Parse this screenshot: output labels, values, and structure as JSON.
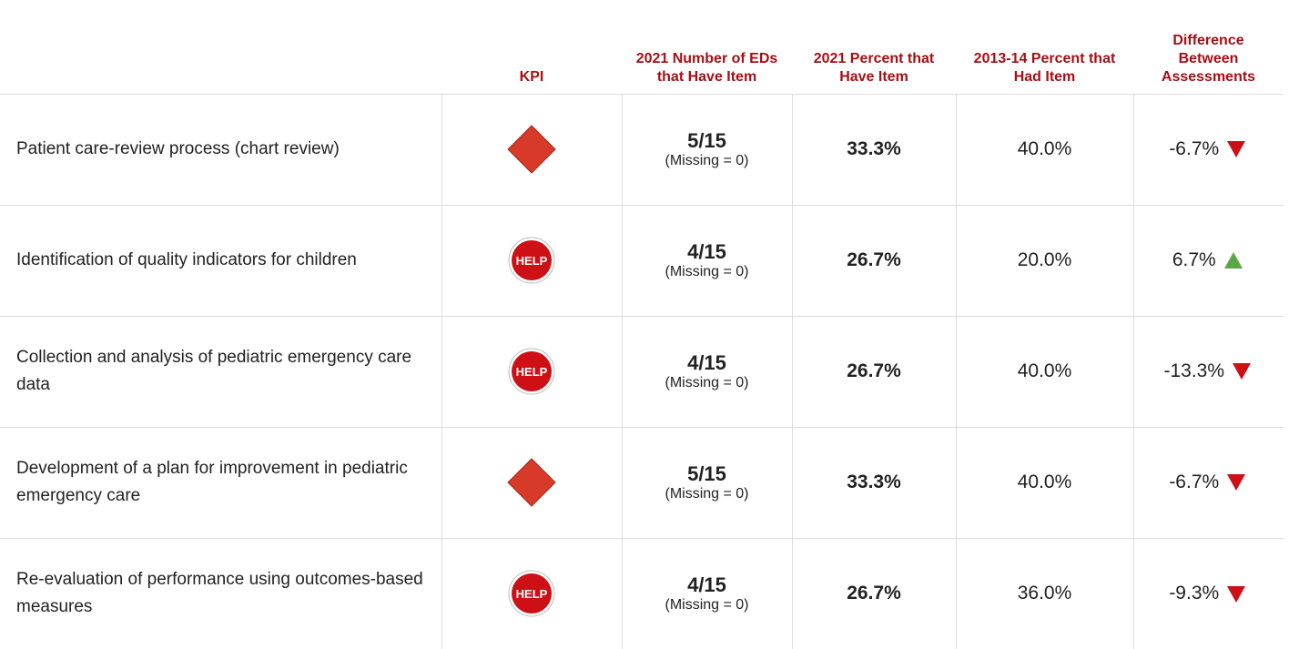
{
  "table": {
    "headers": [
      "KPI",
      "2021 Number of EDs that Have Item",
      "2021 Percent that Have Item",
      "2013-14 Percent that Had Item",
      "Difference Between Assessments"
    ],
    "rows": [
      {
        "item": "Patient care-review process (chart review)",
        "kpi": {
          "shape": "diamond"
        },
        "count": "5/15",
        "missing": "(Missing = 0)",
        "pct_2021": "33.3%",
        "pct_2013": "40.0%",
        "diff": "-6.7%",
        "trend": "down"
      },
      {
        "item": "Identification of quality indicators for children",
        "kpi": {
          "shape": "stop",
          "label": "HELP"
        },
        "count": "4/15",
        "missing": "(Missing = 0)",
        "pct_2021": "26.7%",
        "pct_2013": "20.0%",
        "diff": "6.7%",
        "trend": "up"
      },
      {
        "item": "Collection and analysis of pediatric emergency care data",
        "kpi": {
          "shape": "stop",
          "label": "HELP"
        },
        "count": "4/15",
        "missing": "(Missing = 0)",
        "pct_2021": "26.7%",
        "pct_2013": "40.0%",
        "diff": "-13.3%",
        "trend": "down"
      },
      {
        "item": "Development of a plan for improvement in pediatric emergency care",
        "kpi": {
          "shape": "diamond"
        },
        "count": "5/15",
        "missing": "(Missing = 0)",
        "pct_2021": "33.3%",
        "pct_2013": "40.0%",
        "diff": "-6.7%",
        "trend": "down"
      },
      {
        "item": "Re-evaluation of performance using outcomes-based measures",
        "kpi": {
          "shape": "stop",
          "label": "HELP"
        },
        "count": "4/15",
        "missing": "(Missing = 0)",
        "pct_2021": "26.7%",
        "pct_2013": "36.0%",
        "diff": "-9.3%",
        "trend": "down"
      }
    ]
  }
}
